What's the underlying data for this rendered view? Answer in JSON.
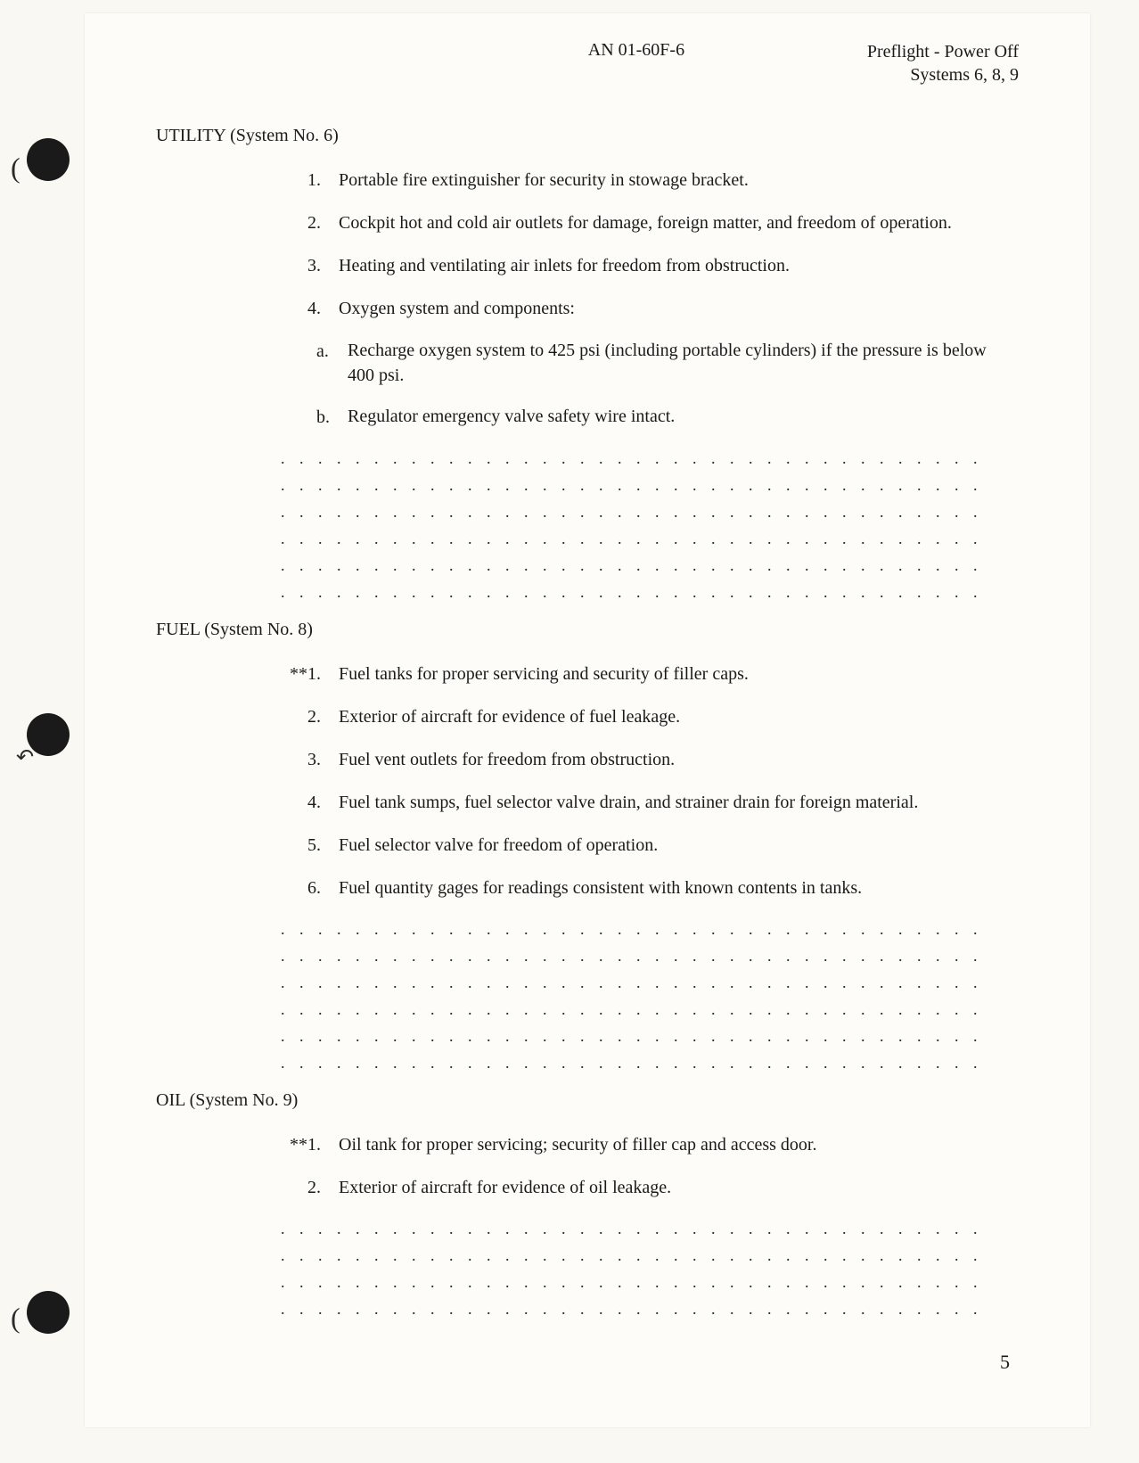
{
  "header": {
    "doc_number": "AN 01-60F-6",
    "right_line1": "Preflight - Power Off",
    "right_line2": "Systems 6, 8, 9"
  },
  "sections": {
    "utility": {
      "title": "UTILITY (System No. 6)",
      "items": [
        {
          "prefix": "",
          "num": "1.",
          "text": "Portable fire extinguisher for security in stowage bracket."
        },
        {
          "prefix": "",
          "num": "2.",
          "text": "Cockpit hot and cold air outlets for damage, foreign matter, and freedom of operation."
        },
        {
          "prefix": "",
          "num": "3.",
          "text": "Heating and ventilating air inlets for freedom from obstruction."
        },
        {
          "prefix": "",
          "num": "4.",
          "text": "Oxygen system and components:"
        }
      ],
      "sub_items": [
        {
          "letter": "a.",
          "text": "Recharge oxygen system to 425 psi (including portable cylinders) if the pressure is below 400 psi."
        },
        {
          "letter": "b.",
          "text": "Regulator emergency valve safety wire intact."
        }
      ],
      "dotted_count": 6
    },
    "fuel": {
      "title": "FUEL (System No. 8)",
      "items": [
        {
          "prefix": "**",
          "num": "1.",
          "text": "Fuel tanks for proper servicing and security of filler caps."
        },
        {
          "prefix": "",
          "num": "2.",
          "text": "Exterior of aircraft for evidence of fuel leakage."
        },
        {
          "prefix": "",
          "num": "3.",
          "text": "Fuel vent outlets for freedom from obstruction."
        },
        {
          "prefix": "",
          "num": "4.",
          "text": "Fuel tank sumps, fuel selector valve drain, and strainer drain for foreign material."
        },
        {
          "prefix": "",
          "num": "5.",
          "text": "Fuel selector valve for freedom of operation."
        },
        {
          "prefix": "",
          "num": "6.",
          "text": "Fuel quantity gages for readings consistent with known contents in tanks."
        }
      ],
      "dotted_count": 6
    },
    "oil": {
      "title": "OIL (System No. 9)",
      "items": [
        {
          "prefix": "**",
          "num": "1.",
          "text": "Oil tank for proper servicing; security of filler cap and access door."
        },
        {
          "prefix": "",
          "num": "2.",
          "text": "Exterior of aircraft for evidence of oil leakage."
        }
      ],
      "dotted_count": 4
    }
  },
  "page_number": "5",
  "dotted_fill": ". . . . . . . . . . . . . . . . . . . . . . . . . . . . . . . . . . . . . . . . . . . . . . . . . . . . . . . . ."
}
